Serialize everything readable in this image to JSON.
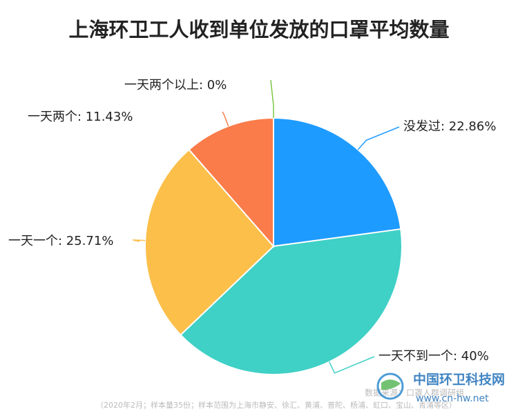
{
  "chart_data": {
    "type": "pie",
    "title": "上海环卫工人收到单位发放的口罩平均数量",
    "values": [
      22.86,
      40,
      25.71,
      11.43,
      0
    ],
    "value_labels": [
      "没发过: 22.86%",
      "一天不到一个: 40%",
      "一天一个: 25.71%",
      "一天两个: 11.43%",
      "一天两个以上: 0%"
    ],
    "colors": [
      "#1e9bff",
      "#3fd0c6",
      "#fbbf4a",
      "#f97c4a",
      "#7bc744"
    ],
    "source": "数据来源：口罩人群调研组",
    "footnote": "（2020年2月；样本量35份；样本范围为上海市静安、徐汇、黄浦、普陀、杨浦、虹口、宝山、青浦等区）"
  },
  "watermark": {
    "name": "中国环卫科技网",
    "url": "www.cn-hw.net"
  }
}
